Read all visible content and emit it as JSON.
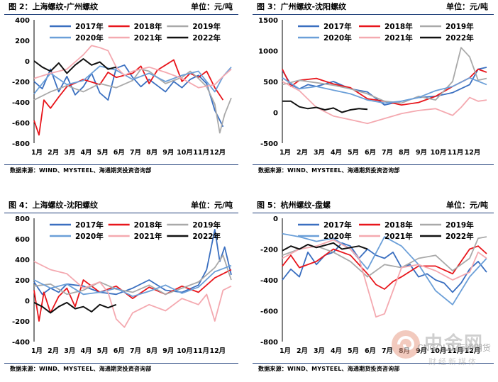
{
  "colors": {
    "2017": "#3a6fc0",
    "2018": "#e8161c",
    "2019": "#a9a9a9",
    "2020": "#6b9fd8",
    "2021": "#f4a9b0",
    "2022": "#111111",
    "rule": "#1f3f7a"
  },
  "source_text": "数据来源：WIND、MYSTEEL、海通期货投资咨询部",
  "unit_text": "单位：元/吨",
  "months": [
    "1月",
    "2月",
    "3月",
    "4月",
    "5月",
    "6月",
    "7月",
    "8月",
    "9月",
    "10月",
    "11月",
    "12月"
  ],
  "watermark": {
    "brand": "中金网",
    "sub": "财经新媒体",
    "overlay": "CNGOLD 海通期货"
  },
  "chart_data": [
    {
      "type": "line",
      "title": "图 2：上海螺纹-广州螺纹",
      "ylim": [
        -800,
        400
      ],
      "yticks": [
        400,
        200,
        0,
        -200,
        -400,
        -600,
        -800
      ],
      "series": [
        {
          "name": "2017年",
          "x": [
            0,
            0.5,
            1,
            1.5,
            2,
            2.5,
            3,
            3.5,
            4,
            4.5,
            5,
            5.5,
            6,
            6.5,
            7,
            7.5,
            8,
            8.5,
            9,
            9.5,
            10,
            10.5,
            11,
            11.5
          ],
          "y": [
            -200,
            -270,
            -80,
            -300,
            -150,
            -330,
            -250,
            -120,
            -310,
            -380,
            -70,
            -40,
            -160,
            -250,
            -180,
            -240,
            -300,
            -200,
            -260,
            -180,
            -140,
            -220,
            -480,
            -640
          ]
        },
        {
          "name": "2018年",
          "x": [
            0,
            0.3,
            0.6,
            1,
            1.5,
            2,
            3,
            4,
            4.5,
            5,
            5.5,
            6,
            6.5,
            7,
            7.5,
            8,
            8.5,
            9,
            9.5,
            10,
            10.5,
            11,
            11.5
          ],
          "y": [
            -580,
            -720,
            -380,
            -460,
            -350,
            -250,
            -180,
            -230,
            -110,
            -160,
            -140,
            -120,
            -50,
            -220,
            -90,
            -40,
            10,
            -200,
            -120,
            -160,
            -100,
            -260,
            -380
          ]
        },
        {
          "name": "2019年",
          "x": [
            0,
            1,
            2,
            2.5,
            3,
            4,
            5,
            6,
            6.5,
            7,
            8,
            9,
            9.5,
            10,
            10.5,
            11,
            11.3,
            11.6,
            12
          ],
          "y": [
            -380,
            -300,
            -240,
            -270,
            -300,
            -220,
            -260,
            -190,
            -80,
            -100,
            -220,
            -160,
            -100,
            -170,
            -250,
            -420,
            -700,
            -520,
            -360
          ]
        },
        {
          "name": "2020年",
          "x": [
            0,
            1,
            2,
            3,
            4,
            5,
            6,
            7,
            8,
            9,
            10,
            11,
            11.5,
            12
          ],
          "y": [
            -320,
            -120,
            -230,
            -190,
            -50,
            -90,
            -180,
            -120,
            -200,
            -140,
            -100,
            -300,
            -150,
            -60
          ]
        },
        {
          "name": "2021年",
          "x": [
            0,
            1,
            2,
            3,
            3.5,
            4,
            4.5,
            5,
            5.5,
            6,
            7,
            8,
            9,
            10,
            11,
            11.5,
            12
          ],
          "y": [
            -170,
            -120,
            -80,
            60,
            150,
            130,
            100,
            -60,
            -140,
            -100,
            -60,
            -110,
            -170,
            -260,
            -230,
            -150,
            -80
          ]
        },
        {
          "name": "2022年",
          "x": [
            0,
            0.5,
            1,
            1.5,
            2,
            2.5,
            3,
            3.5,
            4,
            4.5,
            5
          ],
          "y": [
            0,
            -60,
            -100,
            -20,
            -120,
            -40,
            20,
            -40,
            -10,
            -80,
            -60
          ]
        }
      ]
    },
    {
      "type": "line",
      "title": "图 3：广州螺纹-沈阳螺纹",
      "ylim": [
        -500,
        1500
      ],
      "yticks": [
        1500,
        1000,
        500,
        0,
        -500
      ],
      "series": [
        {
          "name": "2017年",
          "x": [
            0,
            0.5,
            1,
            1.5,
            2,
            3,
            4,
            5,
            6,
            7,
            8,
            9,
            10,
            11,
            11.5,
            12
          ],
          "y": [
            680,
            450,
            380,
            450,
            420,
            500,
            380,
            330,
            120,
            180,
            240,
            260,
            320,
            450,
            700,
            730
          ]
        },
        {
          "name": "2018年",
          "x": [
            0,
            0.5,
            1,
            2,
            3,
            4,
            5,
            6,
            7,
            8,
            9,
            10,
            11,
            11.5,
            12
          ],
          "y": [
            700,
            420,
            520,
            550,
            460,
            400,
            220,
            180,
            120,
            160,
            260,
            420,
            560,
            700,
            650
          ]
        },
        {
          "name": "2019年",
          "x": [
            0,
            1,
            2,
            3,
            4,
            5,
            6,
            7,
            8,
            9,
            10,
            10.5,
            11,
            11.5,
            12
          ],
          "y": [
            450,
            520,
            480,
            440,
            380,
            300,
            180,
            150,
            260,
            200,
            500,
            1050,
            900,
            520,
            550
          ]
        },
        {
          "name": "2020年",
          "x": [
            0,
            1,
            2,
            3,
            4,
            5,
            6,
            7,
            8,
            9,
            10,
            11,
            12
          ],
          "y": [
            560,
            380,
            420,
            360,
            300,
            200,
            150,
            180,
            240,
            350,
            420,
            560,
            450
          ]
        },
        {
          "name": "2021年",
          "x": [
            0,
            1,
            2,
            3,
            4,
            5,
            6,
            7,
            8,
            9,
            10,
            10.5,
            11,
            11.5,
            12
          ],
          "y": [
            500,
            350,
            80,
            -60,
            -120,
            -180,
            -100,
            -20,
            30,
            60,
            -50,
            80,
            240,
            180,
            200
          ]
        },
        {
          "name": "2022年",
          "x": [
            0,
            0.5,
            1,
            1.5,
            2,
            2.5,
            3,
            3.5,
            4,
            4.5,
            5
          ],
          "y": [
            180,
            180,
            90,
            60,
            80,
            40,
            70,
            0,
            40,
            60,
            50
          ]
        }
      ]
    },
    {
      "type": "line",
      "title": "图 4：上海螺纹-沈阳螺纹",
      "ylim": [
        -400,
        800
      ],
      "yticks": [
        800,
        600,
        400,
        200,
        0,
        -200,
        -400
      ],
      "series": [
        {
          "name": "2017年",
          "x": [
            0,
            0.5,
            1,
            1.5,
            2,
            3,
            4,
            5,
            6,
            7,
            8,
            9,
            10,
            10.5,
            11,
            11.3,
            11.6,
            12
          ],
          "y": [
            180,
            60,
            120,
            80,
            160,
            140,
            80,
            60,
            120,
            200,
            100,
            80,
            150,
            300,
            690,
            380,
            520,
            250
          ]
        },
        {
          "name": "2018年",
          "x": [
            0,
            0.3,
            0.6,
            1,
            1.5,
            2,
            2.5,
            3,
            4,
            5,
            6,
            7,
            8,
            9,
            10,
            11,
            11.5,
            12
          ],
          "y": [
            100,
            -200,
            80,
            -120,
            40,
            120,
            -60,
            200,
            80,
            140,
            20,
            130,
            60,
            140,
            80,
            220,
            260,
            300
          ]
        },
        {
          "name": "2019年",
          "x": [
            0,
            1,
            2,
            3,
            4,
            5,
            6,
            7,
            8,
            9,
            10,
            11,
            11.5,
            12
          ],
          "y": [
            140,
            160,
            60,
            100,
            180,
            110,
            80,
            150,
            60,
            120,
            180,
            320,
            440,
            200
          ]
        },
        {
          "name": "2020年",
          "x": [
            0,
            1,
            2,
            3,
            4,
            5,
            6,
            7,
            8,
            9,
            10,
            11,
            12
          ],
          "y": [
            200,
            120,
            160,
            60,
            80,
            120,
            40,
            90,
            150,
            70,
            130,
            280,
            340
          ]
        },
        {
          "name": "2021年",
          "x": [
            0,
            1,
            2,
            3,
            4,
            4.5,
            5,
            5.5,
            6,
            7,
            8,
            9,
            10,
            10.5,
            11,
            11.5,
            12
          ],
          "y": [
            380,
            300,
            260,
            120,
            180,
            80,
            -180,
            -260,
            -120,
            -40,
            -100,
            20,
            -40,
            60,
            -200,
            100,
            140
          ]
        },
        {
          "name": "2022年",
          "x": [
            0,
            0.5,
            1,
            1.5,
            2,
            2.5,
            3,
            3.5,
            4,
            4.5,
            5
          ],
          "y": [
            -20,
            -60,
            -120,
            -60,
            -20,
            -80,
            -60,
            -110,
            -40,
            -70,
            -40
          ]
        }
      ]
    },
    {
      "type": "line",
      "title": "图 5：杭州螺纹-盘螺",
      "ylim": [
        -800,
        0
      ],
      "yticks": [
        0,
        -200,
        -400,
        -600,
        -800
      ],
      "series": [
        {
          "name": "2017年",
          "x": [
            0,
            0.5,
            1,
            1.5,
            2,
            2.5,
            3,
            3.5,
            4,
            4.5,
            5,
            5.5,
            6,
            6.5,
            7,
            7.5,
            8,
            8.5,
            9,
            9.5,
            10,
            10.5,
            11,
            11.5,
            12
          ],
          "y": [
            -400,
            -330,
            -380,
            -220,
            -300,
            -240,
            -220,
            -160,
            -180,
            -260,
            -200,
            -240,
            -260,
            -220,
            -320,
            -300,
            -380,
            -360,
            -400,
            -420,
            -480,
            -420,
            -330,
            -280,
            -350
          ]
        },
        {
          "name": "2018年",
          "x": [
            0,
            0.5,
            1,
            2,
            3,
            4,
            5,
            5.5,
            6,
            6.5,
            7,
            8,
            9,
            10,
            11,
            11.5,
            12
          ],
          "y": [
            -310,
            -240,
            -320,
            -280,
            -200,
            -240,
            -360,
            -430,
            -460,
            -410,
            -380,
            -310,
            -310,
            -360,
            -200,
            -180,
            -230
          ]
        },
        {
          "name": "2019年",
          "x": [
            0,
            1,
            2,
            3,
            4,
            5,
            6,
            7,
            8,
            9,
            10,
            11,
            11.5,
            12
          ],
          "y": [
            -240,
            -200,
            -180,
            -220,
            -280,
            -380,
            -300,
            -320,
            -260,
            -240,
            -340,
            -260,
            -130,
            -120
          ]
        },
        {
          "name": "2020年",
          "x": [
            0,
            1,
            2,
            3,
            4,
            5,
            6,
            7,
            8,
            9,
            10,
            11,
            12
          ],
          "y": [
            -100,
            -120,
            -150,
            -130,
            -200,
            -330,
            -120,
            -180,
            -300,
            -470,
            -560,
            -380,
            -260
          ]
        },
        {
          "name": "2021年",
          "x": [
            0,
            1,
            2,
            3,
            4,
            4.5,
            5,
            5.5,
            6,
            7,
            8,
            9,
            10,
            11,
            11.5,
            12
          ],
          "y": [
            -260,
            -200,
            -180,
            -140,
            -200,
            -260,
            -450,
            -640,
            -620,
            -320,
            -300,
            -340,
            -400,
            -350,
            -220,
            -260
          ]
        },
        {
          "name": "2022年",
          "x": [
            0,
            0.5,
            1,
            1.5,
            2,
            2.5,
            3,
            3.5,
            4,
            4.5,
            5
          ],
          "y": [
            -210,
            -180,
            -200,
            -170,
            -190,
            -175,
            -160,
            -200,
            -190,
            -180,
            -200
          ]
        }
      ]
    }
  ]
}
